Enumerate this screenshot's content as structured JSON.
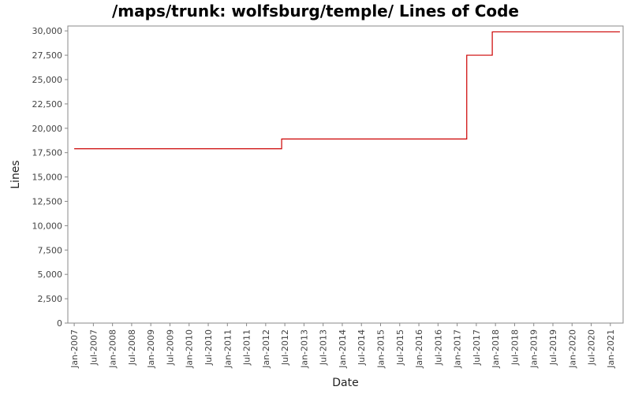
{
  "chart_data": {
    "type": "line",
    "title": "/maps/trunk: wolfsburg/temple/ Lines of Code",
    "xlabel": "Date",
    "ylabel": "Lines",
    "ylim": [
      0,
      30500
    ],
    "xlim": [
      "2006-11",
      "2021-05"
    ],
    "yticks": [
      0,
      2500,
      5000,
      7500,
      10000,
      12500,
      15000,
      17500,
      20000,
      22500,
      25000,
      27500,
      30000
    ],
    "ytick_labels": [
      "0",
      "2,500",
      "5,000",
      "7,500",
      "10,000",
      "12,500",
      "15,000",
      "17,500",
      "20,000",
      "22,500",
      "25,000",
      "27,500",
      "30,000"
    ],
    "xticks": [
      "2007-01",
      "2007-07",
      "2008-01",
      "2008-07",
      "2009-01",
      "2009-07",
      "2010-01",
      "2010-07",
      "2011-01",
      "2011-07",
      "2012-01",
      "2012-07",
      "2013-01",
      "2013-07",
      "2014-01",
      "2014-07",
      "2015-01",
      "2015-07",
      "2016-01",
      "2016-07",
      "2017-01",
      "2017-07",
      "2018-01",
      "2018-07",
      "2019-01",
      "2019-07",
      "2020-01",
      "2020-07",
      "2021-01"
    ],
    "xtick_labels": [
      "Jan-2007",
      "Jul-2007",
      "Jan-2008",
      "Jul-2008",
      "Jan-2009",
      "Jul-2009",
      "Jan-2010",
      "Jul-2010",
      "Jan-2011",
      "Jul-2011",
      "Jan-2012",
      "Jul-2012",
      "Jan-2013",
      "Jul-2013",
      "Jan-2014",
      "Jul-2014",
      "Jan-2015",
      "Jul-2015",
      "Jan-2016",
      "Jul-2016",
      "Jan-2017",
      "Jul-2017",
      "Jan-2018",
      "Jul-2018",
      "Jan-2019",
      "Jul-2019",
      "Jan-2020",
      "Jul-2020",
      "Jan-2021"
    ],
    "series": [
      {
        "color": "#cc0000",
        "step": true,
        "points": [
          {
            "x": "2007-01",
            "y": 17900
          },
          {
            "x": "2012-06",
            "y": 18900
          },
          {
            "x": "2017-04",
            "y": 27500
          },
          {
            "x": "2017-12",
            "y": 29900
          },
          {
            "x": "2021-04",
            "y": 29900
          }
        ]
      }
    ],
    "grid": false,
    "background": "#ffffff",
    "axis_color": "#888888"
  }
}
